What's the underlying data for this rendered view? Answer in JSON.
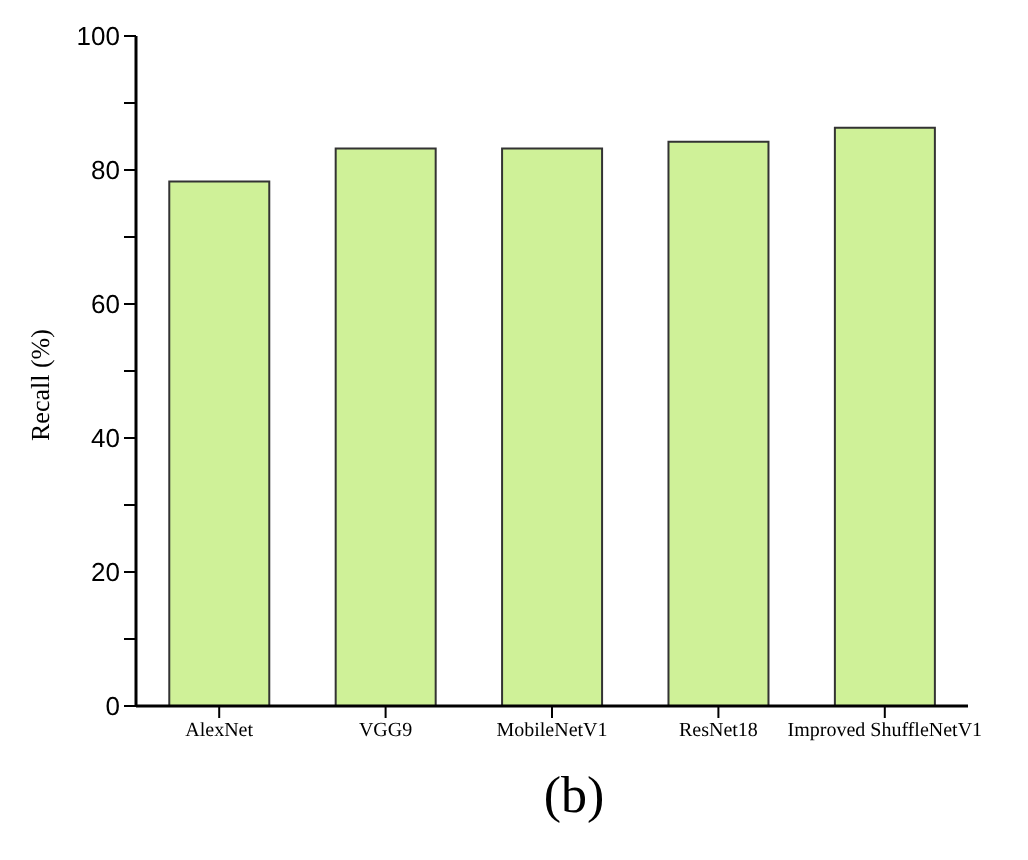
{
  "chart_data": {
    "type": "bar",
    "ylabel": "Recall (%)",
    "categories": [
      "AlexNet",
      "VGG9",
      "MobileNetV1",
      "ResNet18",
      "Improved ShuffleNetV1"
    ],
    "values": [
      78.3,
      83.2,
      83.2,
      84.2,
      86.3
    ],
    "color": "#cff198",
    "ylim": [
      0,
      100
    ],
    "yticks": [
      0,
      {
        "value": 10,
        "label": null
      },
      20,
      {
        "value": 30,
        "label": null
      },
      40,
      {
        "value": 50,
        "label": null
      },
      60,
      {
        "value": 70,
        "label": null
      },
      80,
      {
        "value": 90,
        "label": null
      },
      100
    ],
    "grid": false,
    "annotations": [
      "(b)"
    ]
  }
}
